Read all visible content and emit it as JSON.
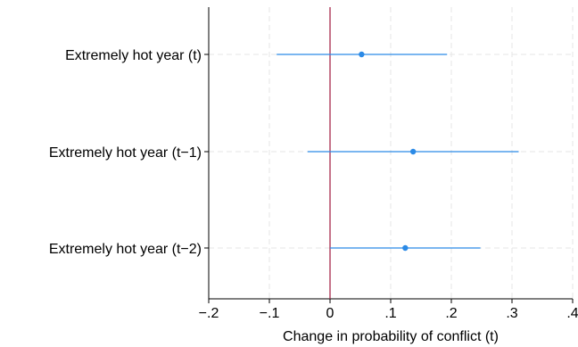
{
  "chart_data": {
    "type": "coefficient-plot",
    "orientation": "horizontal",
    "xlabel": "Change in probability of conflict (t)",
    "ylabel": "",
    "xlim": [
      -0.2,
      0.4
    ],
    "xticks": [
      -0.2,
      -0.1,
      0,
      0.1,
      0.2,
      0.3,
      0.4
    ],
    "xtick_labels": [
      "−.2",
      "−.1",
      "0",
      ".1",
      ".2",
      ".3",
      ".4"
    ],
    "reference_line": {
      "x": 0,
      "color": "#a0183c"
    },
    "grid": true,
    "marker_color": "#2b8ae6",
    "categories": [
      "Extremely hot year (t)",
      "Extremely hot year (t−1)",
      "Extremely hot year (t−2)"
    ],
    "estimates": [
      0.052,
      0.137,
      0.124
    ],
    "ci_lower": [
      -0.088,
      -0.037,
      0.0
    ],
    "ci_upper": [
      0.193,
      0.311,
      0.248
    ]
  }
}
